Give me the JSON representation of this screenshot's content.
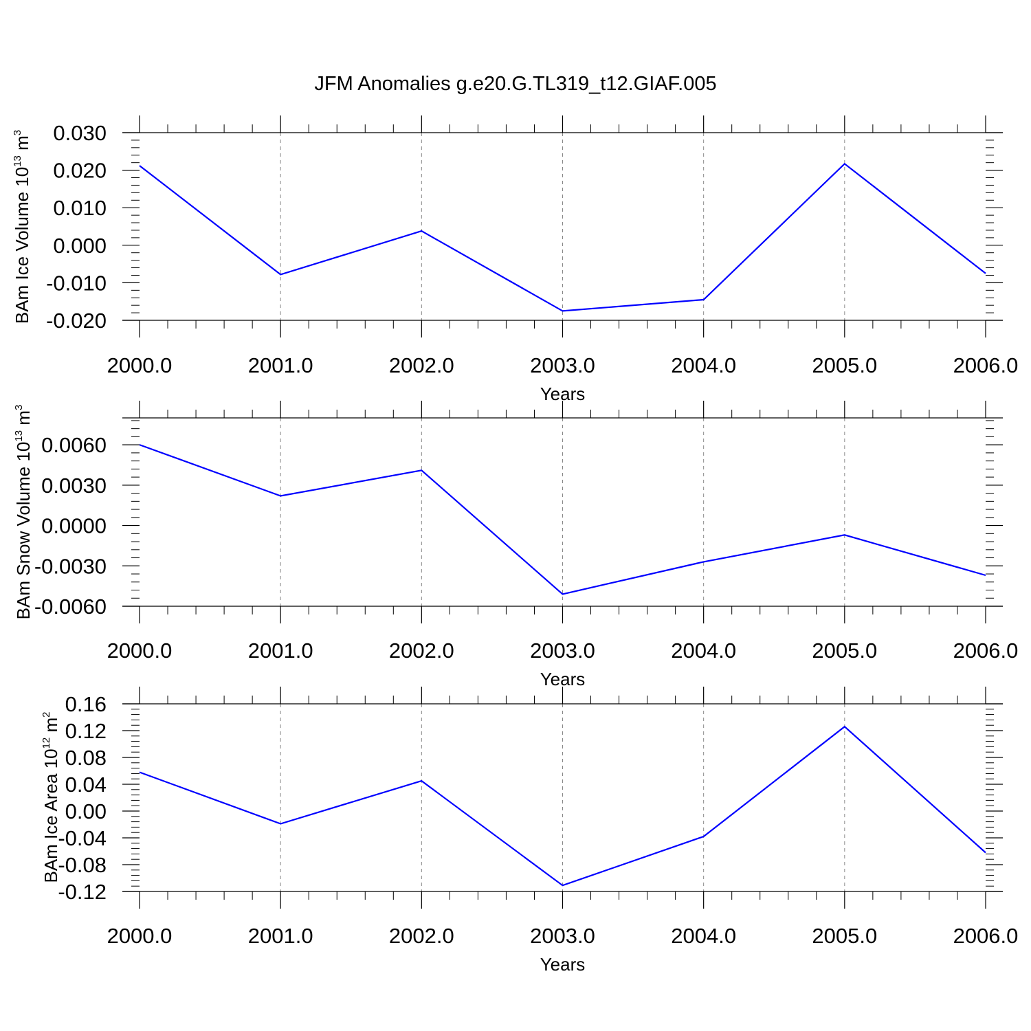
{
  "title": "JFM Anomalies g.e20.G.TL319_t12.GIAF.005",
  "line_color": "#0000ff",
  "chart_data": [
    {
      "type": "line",
      "xlabel": "Years",
      "ylabel": {
        "text": "BAm Ice Volume 10",
        "sup": "13",
        "unit": " m",
        "unit_sup": "3"
      },
      "x": [
        2000,
        2001,
        2002,
        2003,
        2004,
        2005,
        2006
      ],
      "y": [
        0.0212,
        -0.0078,
        0.0038,
        -0.0175,
        -0.0145,
        0.0217,
        -0.0075
      ],
      "ylim": [
        -0.02,
        0.03
      ],
      "ymax_frame": 0.03,
      "yticks": [
        -0.02,
        -0.01,
        0.0,
        0.01,
        0.02,
        0.03
      ],
      "ytick_labels": [
        "-0.020",
        "-0.010",
        "0.000",
        "0.010",
        "0.020",
        "0.030"
      ],
      "xticks": [
        2000,
        2001,
        2002,
        2003,
        2004,
        2005,
        2006
      ],
      "xtick_labels": [
        "2000.0",
        "2001.0",
        "2002.0",
        "2003.0",
        "2004.0",
        "2005.0",
        "2006.0"
      ],
      "grid": "vertical-dashed"
    },
    {
      "type": "line",
      "xlabel": "Years",
      "ylabel": {
        "text": "BAm Snow Volume 10",
        "sup": "13",
        "unit": " m",
        "unit_sup": "3"
      },
      "x": [
        2000,
        2001,
        2002,
        2003,
        2004,
        2005,
        2006
      ],
      "y": [
        0.006,
        0.0022,
        0.0041,
        -0.0051,
        -0.0027,
        -0.0007,
        -0.0037
      ],
      "ylim": [
        -0.006,
        0.008
      ],
      "yticks": [
        -0.006,
        -0.003,
        0.0,
        0.003,
        0.006
      ],
      "ytick_labels": [
        "-0.0060",
        "-0.0030",
        "0.0000",
        "0.0030",
        "0.0060"
      ],
      "xticks": [
        2000,
        2001,
        2002,
        2003,
        2004,
        2005,
        2006
      ],
      "xtick_labels": [
        "2000.0",
        "2001.0",
        "2002.0",
        "2003.0",
        "2004.0",
        "2005.0",
        "2006.0"
      ],
      "grid": "vertical-dashed"
    },
    {
      "type": "line",
      "xlabel": "Years",
      "ylabel": {
        "text": "BAm Ice Area 10",
        "sup": "12",
        "unit": " m",
        "unit_sup": "2"
      },
      "x": [
        2000,
        2001,
        2002,
        2003,
        2004,
        2005,
        2006
      ],
      "y": [
        0.058,
        -0.019,
        0.045,
        -0.111,
        -0.038,
        0.126,
        -0.062
      ],
      "ylim": [
        -0.12,
        0.16
      ],
      "yticks": [
        -0.12,
        -0.08,
        -0.04,
        0.0,
        0.04,
        0.08,
        0.12,
        0.16
      ],
      "ytick_labels": [
        "-0.12",
        "-0.08",
        "-0.04",
        "0.00",
        "0.04",
        "0.08",
        "0.12",
        "0.16"
      ],
      "xticks": [
        2000,
        2001,
        2002,
        2003,
        2004,
        2005,
        2006
      ],
      "xtick_labels": [
        "2000.0",
        "2001.0",
        "2002.0",
        "2003.0",
        "2004.0",
        "2005.0",
        "2006.0"
      ],
      "grid": "vertical-dashed"
    }
  ]
}
